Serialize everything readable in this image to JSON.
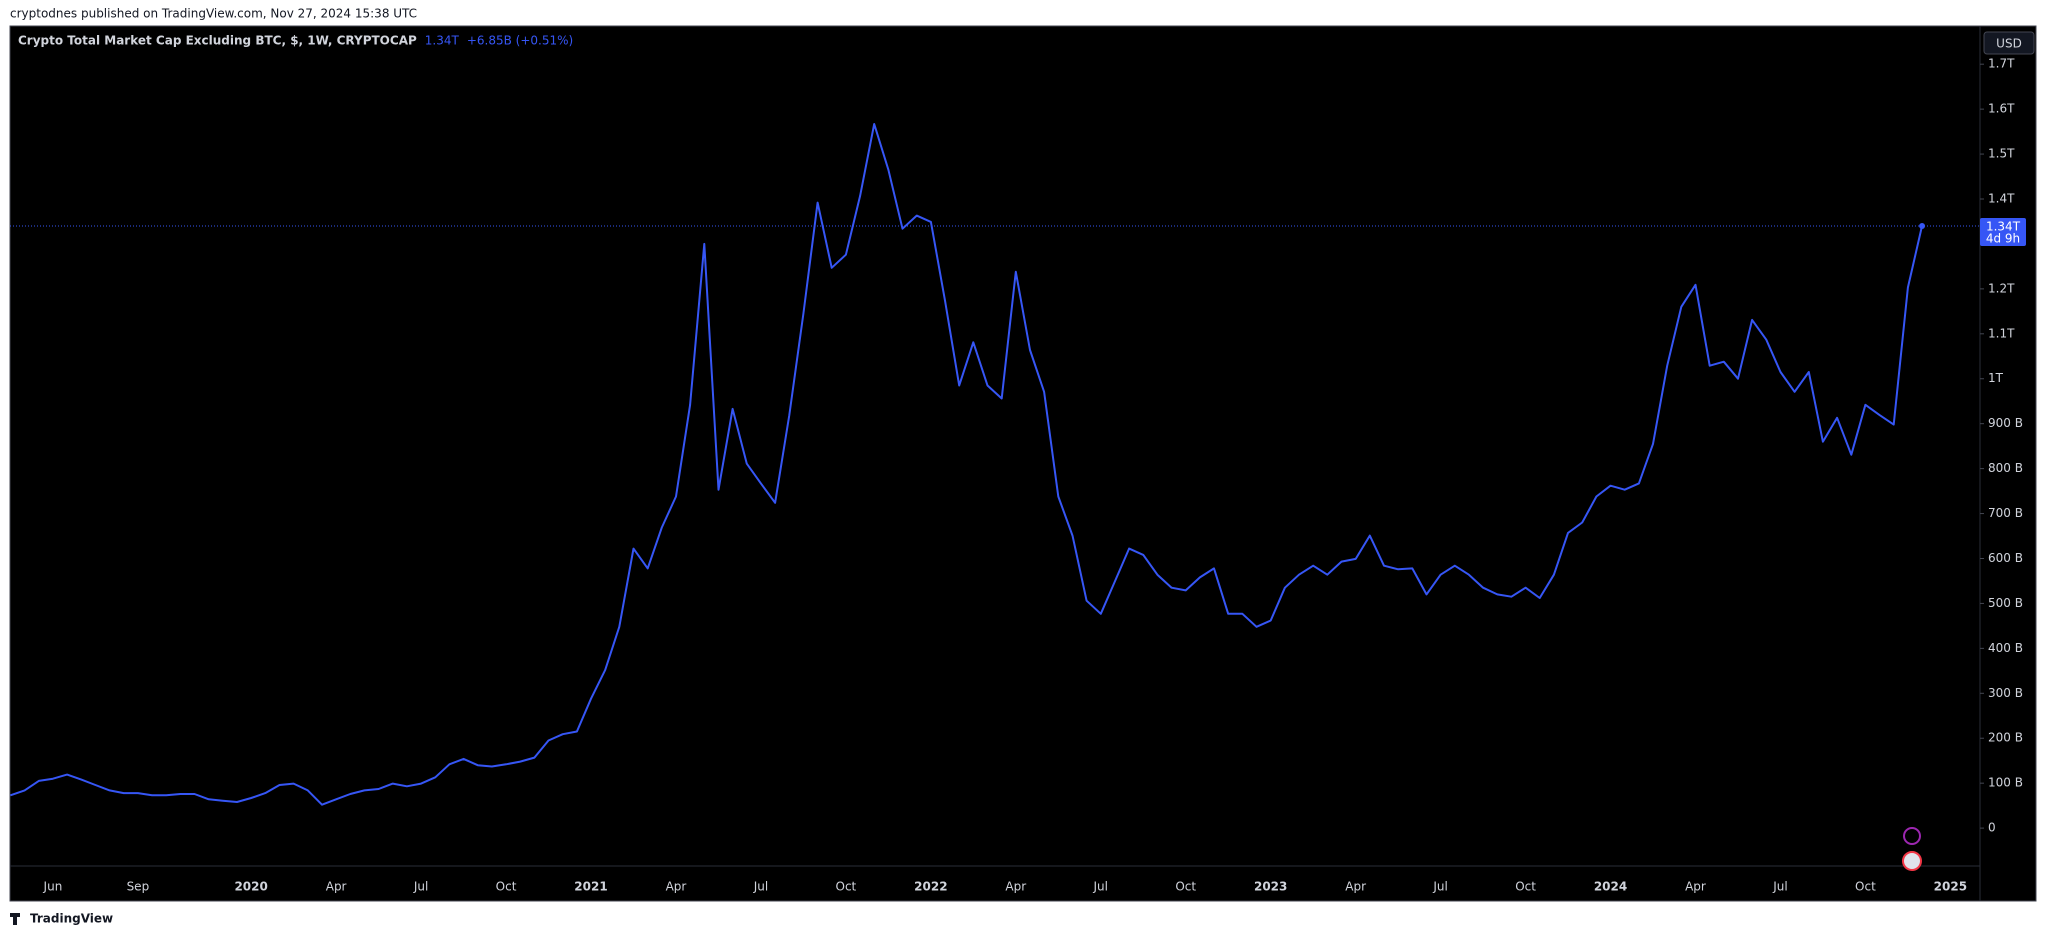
{
  "publisher_line": "cryptodnes published on TradingView.com, Nov 27, 2024 15:38 UTC",
  "footer_brand": "TradingView",
  "chart_data": {
    "type": "line",
    "title": "Crypto Total Market Cap Excluding BTC, $, 1W, CRYPTOCAP",
    "change": "+6.85B (+0.51%)",
    "currency": "USD",
    "countdown": "4d 9h",
    "price_label": {
      "value": 1340,
      "label": "1.34T"
    },
    "categories": [
      null,
      null,
      null,
      "Jun",
      null,
      null,
      null,
      null,
      null,
      "Sep",
      null,
      null,
      null,
      null,
      null,
      null,
      null,
      "2020",
      null,
      null,
      null,
      null,
      null,
      "Apr",
      null,
      null,
      null,
      null,
      null,
      "Jul",
      null,
      null,
      null,
      null,
      null,
      "Oct",
      null,
      null,
      null,
      null,
      null,
      "2021",
      null,
      null,
      null,
      null,
      null,
      "Apr",
      null,
      null,
      null,
      null,
      null,
      "Jul",
      null,
      null,
      null,
      null,
      null,
      "Oct",
      null,
      null,
      null,
      null,
      null,
      "2022",
      null,
      null,
      null,
      null,
      null,
      "Apr",
      null,
      null,
      null,
      null,
      null,
      "Jul",
      null,
      null,
      null,
      null,
      null,
      "Oct",
      null,
      null,
      null,
      null,
      null,
      "2023",
      null,
      null,
      null,
      null,
      null,
      "Apr",
      null,
      null,
      null,
      null,
      null,
      "Jul",
      null,
      null,
      null,
      null,
      null,
      "Oct",
      null,
      null,
      null,
      null,
      null,
      "2024",
      null,
      null,
      null,
      null,
      null,
      "Apr",
      null,
      null,
      null,
      null,
      null,
      "Jul",
      null,
      null,
      null,
      null,
      null,
      "Oct",
      null,
      null,
      null,
      null,
      null,
      "2025"
    ],
    "series": [
      {
        "name": "Crypto Total Market Cap Excluding BTC",
        "color": "#3656f5",
        "values": [
          73,
          84,
          105,
          110,
          119,
          108,
          96,
          84,
          78,
          78,
          73,
          73,
          76,
          76,
          64,
          61,
          58,
          67,
          78,
          96,
          99,
          84,
          52,
          64,
          76,
          84,
          87,
          99,
          93,
          99,
          113,
          142,
          154,
          140,
          137,
          142,
          148,
          157,
          195,
          209,
          215,
          288,
          352,
          448,
          622,
          578,
          669,
          738,
          942,
          1300,
          753,
          933,
          811,
          767,
          724,
          919,
          1145,
          1392,
          1247,
          1276,
          1407,
          1567,
          1465,
          1334,
          1363,
          1349,
          1174,
          985,
          1081,
          985,
          956,
          1238,
          1064,
          971,
          738,
          651,
          506,
          477,
          549,
          622,
          608,
          564,
          535,
          529,
          558,
          578,
          477,
          477,
          448,
          462,
          535,
          564,
          584,
          564,
          593,
          599,
          651,
          584,
          576,
          578,
          520,
          564,
          584,
          564,
          535,
          520,
          515,
          535,
          512,
          564,
          657,
          680,
          738,
          762,
          753,
          767,
          855,
          1029,
          1160,
          1209,
          1029,
          1038,
          1000,
          1131,
          1087,
          1015,
          971,
          1015,
          860,
          913,
          831,
          942,
          919,
          898,
          1203,
          1340,
          null,
          null
        ]
      }
    ],
    "ylim": [
      -160,
      1785
    ],
    "yticks": [
      0,
      {
        "value": 100,
        "label": "100 B"
      },
      {
        "value": 200,
        "label": "200 B"
      },
      {
        "value": 300,
        "label": "300 B"
      },
      {
        "value": 400,
        "label": "400 B"
      },
      {
        "value": 500,
        "label": "500 B"
      },
      {
        "value": 600,
        "label": "600 B"
      },
      {
        "value": 700,
        "label": "700 B"
      },
      {
        "value": 800,
        "label": "800 B"
      },
      {
        "value": 900,
        "label": "900 B"
      },
      {
        "value": 1000,
        "label": "1T"
      },
      {
        "value": 1100,
        "label": "1.1T"
      },
      {
        "value": 1200,
        "label": "1.2T"
      },
      {
        "value": 1400,
        "label": "1.4T"
      },
      {
        "value": 1500,
        "label": "1.5T"
      },
      {
        "value": 1600,
        "label": "1.6T"
      },
      {
        "value": 1700,
        "label": "1.7T"
      }
    ],
    "grid": false
  }
}
